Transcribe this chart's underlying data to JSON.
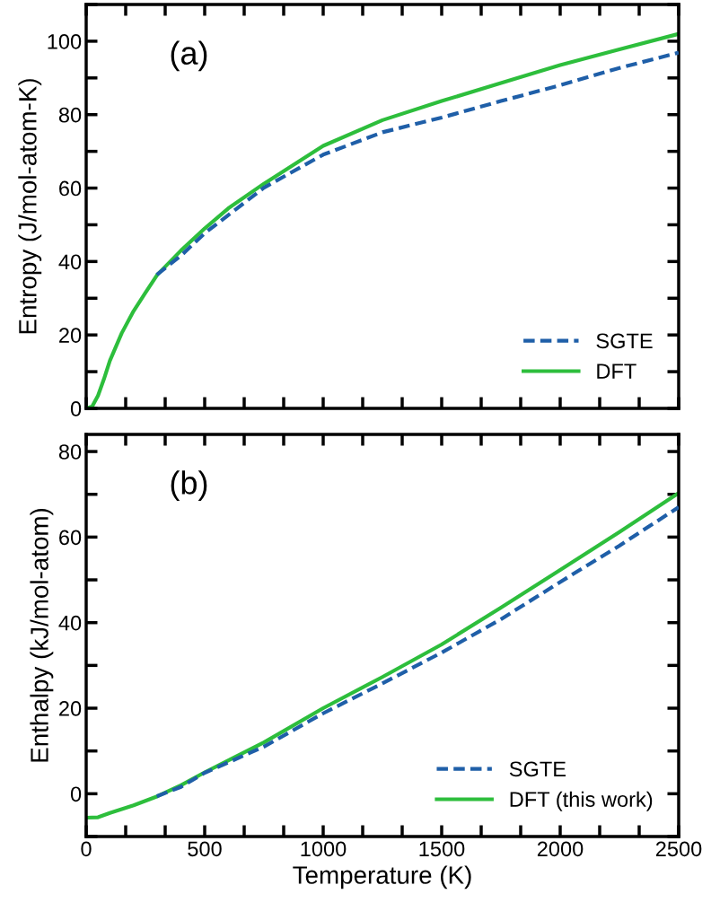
{
  "chart_data": [
    {
      "type": "line",
      "ylabel": "Entropy (J/mol-atom-K)",
      "annotations": [
        "(a)"
      ],
      "xlim": [
        0,
        2500
      ],
      "xticks": [
        0,
        500,
        1000,
        1500,
        2000,
        2500
      ],
      "ylim": [
        0,
        110
      ],
      "yticks": [
        0,
        20,
        40,
        60,
        80,
        100
      ],
      "tick_labels": "y",
      "legend": "bottom right",
      "grid": false,
      "series": [
        {
          "name": "SGTE",
          "color": "#1f5fa8",
          "line_style": "dashed",
          "x": [
            298,
            400,
            500,
            750,
            1000,
            1250,
            1500,
            1750,
            2000,
            2250,
            2500
          ],
          "values": [
            36.4,
            41.6,
            47.7,
            60.1,
            69.1,
            75.2,
            79.2,
            83.7,
            88.0,
            92.7,
            96.9
          ]
        },
        {
          "name": "DFT",
          "color": "#2dbe3c",
          "line_style": "solid",
          "x": [
            0,
            25,
            50,
            75,
            100,
            150,
            200,
            250,
            300,
            400,
            500,
            600,
            750,
            1000,
            1250,
            1500,
            1750,
            2000,
            2250,
            2500
          ],
          "values": [
            0,
            0.5,
            3.5,
            8,
            13,
            20.5,
            26.5,
            31.5,
            36.4,
            43,
            49,
            54.5,
            61.2,
            71.5,
            78.5,
            83.7,
            88.6,
            93.5,
            97.8,
            102
          ]
        }
      ]
    },
    {
      "type": "line",
      "xlabel": "Temperature (K)",
      "ylabel": "Enthalpy (kJ/mol-atom)",
      "annotations": [
        "(b)"
      ],
      "xlim": [
        0,
        2500
      ],
      "xticks": [
        0,
        500,
        1000,
        1500,
        2000,
        2500
      ],
      "ylim": [
        -10,
        84
      ],
      "yticks": [
        0,
        20,
        40,
        60,
        80
      ],
      "legend": "bottom right",
      "grid": false,
      "series": [
        {
          "name": "SGTE",
          "color": "#1f5fa8",
          "line_style": "dashed",
          "x": [
            298,
            400,
            500,
            750,
            1000,
            1250,
            1500,
            1750,
            2000,
            2250,
            2500
          ],
          "values": [
            -0.6,
            1.6,
            4.9,
            11.0,
            18.8,
            25.8,
            33.0,
            40.8,
            49.5,
            58.0,
            67.0
          ]
        },
        {
          "name": "DFT (this work)",
          "color": "#2dbe3c",
          "line_style": "solid",
          "x": [
            0,
            50,
            100,
            200,
            300,
            400,
            500,
            750,
            1000,
            1250,
            1500,
            1750,
            2000,
            2250,
            2500
          ],
          "values": [
            -5.6,
            -5.5,
            -4.5,
            -2.7,
            -0.6,
            2.0,
            5.0,
            12.0,
            20.0,
            27.3,
            34.9,
            43.5,
            52.3,
            61.2,
            70.3
          ]
        }
      ]
    }
  ]
}
